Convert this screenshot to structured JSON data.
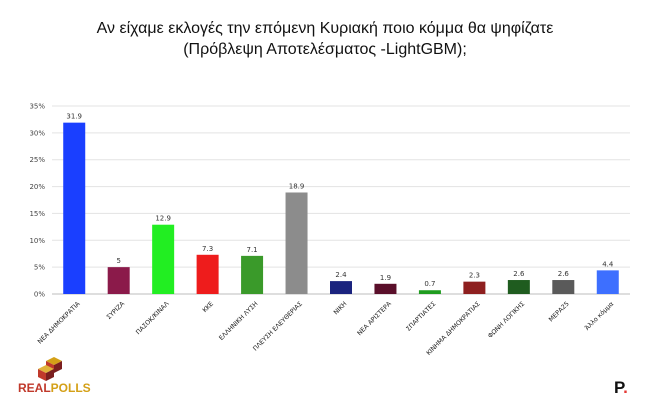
{
  "title_line1": "Αν είχαμε εκλογές την επόμενη Κυριακή ποιο κόμμα θα ψηφίζατε",
  "title_line2": "(Πρόβλεψη Αποτελέσματος -LightGBM);",
  "logo": {
    "text_a": "REAL",
    "text_b": "POLLS",
    "colors": [
      "#c0392b",
      "#d4a017",
      "#7b1f1f"
    ]
  },
  "corner_mark": {
    "letter": "P",
    "dot": "."
  },
  "chart_data": {
    "type": "bar",
    "title": "Αν είχαμε εκλογές την επόμενη Κυριακή ποιο κόμμα θα ψηφίζατε (Πρόβλεψη Αποτελέσματος -LightGBM);",
    "categories": [
      "ΝΕΑ ΔΗΜΟΚΡΑΤΙΑ",
      "ΣΥΡΙΖΑ",
      "ΠΑΣΟΚ/ΚΙΝΑΛ",
      "ΚΚΕ",
      "ΕΛΛΗΝΙΚΗ ΛΥΣΗ",
      "ΠΛΕΥΣΗ ΕΛΕΥΘΕΡΙΑΣ",
      "ΝΙΚΗ",
      "ΝΕΑ ΑΡΙΣΤΕΡΑ",
      "ΣΠΑΡΤΙΑΤΕΣ",
      "ΚΙΝΗΜΑ ΔΗΜΟΚΡΑΤΙΑΣ",
      "ΦΩΝΗ ΛΟΓΙΚΗΣ",
      "ΜΕΡΑ25",
      "Άλλο κόμμα"
    ],
    "values": [
      31.9,
      5,
      12.9,
      7.3,
      7.1,
      18.9,
      2.4,
      1.9,
      0.7,
      2.3,
      2.6,
      2.6,
      4.4
    ],
    "value_labels": [
      "31.9",
      "5",
      "12.9",
      "7.3",
      "7.1",
      "18.9",
      "2.4",
      "1.9",
      "0.7",
      "2.3",
      "2.6",
      "2.6",
      "4.4"
    ],
    "colors": [
      "#1a3fff",
      "#8b1a4a",
      "#22ee22",
      "#ee1c1c",
      "#3a9a2a",
      "#8c8c8c",
      "#1a237e",
      "#5a0f2a",
      "#1f9c1f",
      "#8e1f1f",
      "#1f5c1f",
      "#5a5a5a",
      "#3d6fff"
    ],
    "yticks": [
      0,
      5,
      10,
      15,
      20,
      25,
      30,
      35
    ],
    "ytick_labels": [
      "0%",
      "5%",
      "10%",
      "15%",
      "20%",
      "25%",
      "30%",
      "35%"
    ],
    "ylim": [
      0,
      35
    ],
    "grid": true,
    "xlabel": "",
    "ylabel": ""
  }
}
